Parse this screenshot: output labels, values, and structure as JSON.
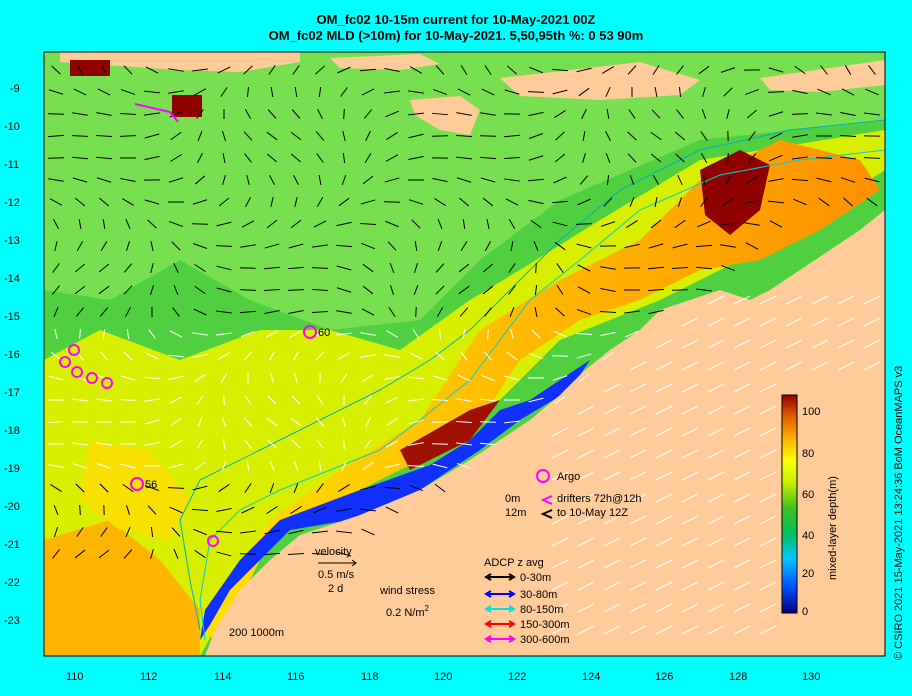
{
  "title": {
    "line1": "OM_fc02 10-15m current for 10-May-2021 00Z",
    "line2": "OM_fc02 MLD (>10m) for 10-May-2021. 5,50,95th %: 0  53  90m"
  },
  "axes": {
    "lat_ticks": [
      "-9",
      "-10",
      "-11",
      "-12",
      "-13",
      "-14",
      "-15",
      "-16",
      "-17",
      "-18",
      "-19",
      "-20",
      "-21",
      "-22",
      "-23"
    ],
    "lon_ticks": [
      "110",
      "112",
      "114",
      "116",
      "118",
      "120",
      "122",
      "124",
      "126",
      "128",
      "130"
    ]
  },
  "colorbar": {
    "label": "mixed-layer depth(m)",
    "ticks": [
      "100",
      "80",
      "60",
      "40",
      "20",
      "0"
    ]
  },
  "argo_floats": [
    {
      "id": "60",
      "label": "60"
    },
    {
      "id": "56",
      "label": "56"
    }
  ],
  "legend": {
    "argo": "Argo",
    "drifters_depth_0": "0m",
    "drifters_text_0": "drifters 72h@12h",
    "drifters_depth_12": "12m",
    "drifters_text_12": "to 10-May 12Z",
    "velocity": "velocity",
    "velocity_scale": "0.5 m/s",
    "velocity_days": "2 d",
    "wind_stress": "wind stress",
    "wind_scale": "0.2 N/m",
    "wind_sup": "2",
    "adcp_title": "ADCP z avg",
    "adcp": [
      {
        "label": "0-30m",
        "color": "#000000"
      },
      {
        "label": "30-80m",
        "color": "#0000ff"
      },
      {
        "label": "80-150m",
        "color": "#00e0e0"
      },
      {
        "label": "150-300m",
        "color": "#ff0000"
      },
      {
        "label": "300-600m",
        "color": "#ff00ff"
      }
    ],
    "isobaths": "200  1000m"
  },
  "credit": "© CSIRO 2021  15-May-2021 13:24:36 BoM OceanMAPS v3"
}
